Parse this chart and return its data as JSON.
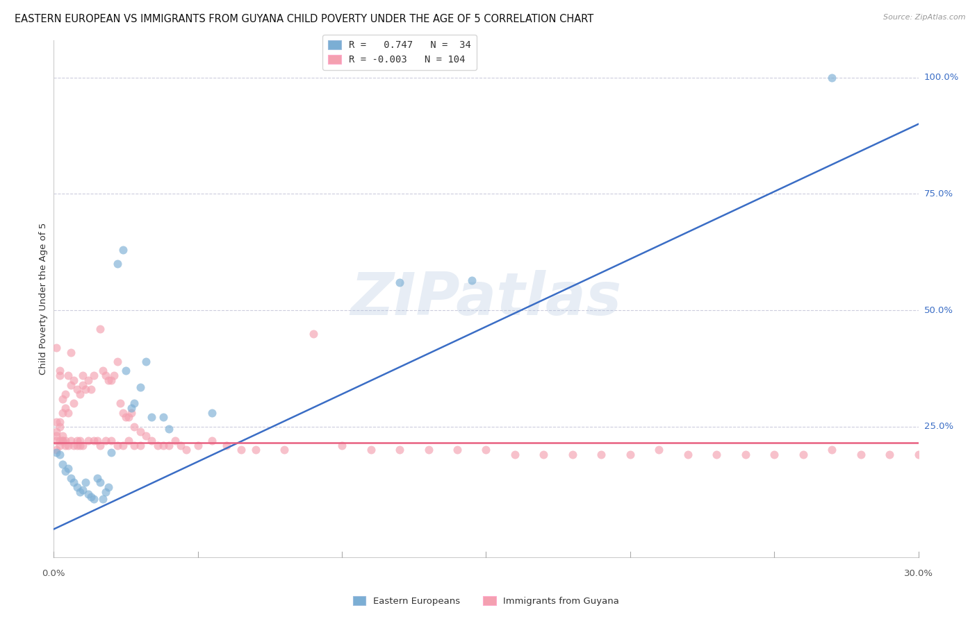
{
  "title": "EASTERN EUROPEAN VS IMMIGRANTS FROM GUYANA CHILD POVERTY UNDER THE AGE OF 5 CORRELATION CHART",
  "source": "Source: ZipAtlas.com",
  "ylabel": "Child Poverty Under the Age of 5",
  "ytick_labels": [
    "100.0%",
    "75.0%",
    "50.0%",
    "25.0%"
  ],
  "ytick_values": [
    1.0,
    0.75,
    0.5,
    0.25
  ],
  "xtick_label_left": "0.0%",
  "xtick_label_right": "30.0%",
  "xmin": 0.0,
  "xmax": 0.3,
  "ymin": -0.03,
  "ymax": 1.08,
  "r1": "0.747",
  "n1": "34",
  "r2": "-0.003",
  "n2": "104",
  "legend_label1": "Eastern Europeans",
  "legend_label2": "Immigrants from Guyana",
  "watermark": "ZIPatlas",
  "blue_color": "#7BAED4",
  "pink_color": "#F4A0B0",
  "blue_line_color": "#3A6DC5",
  "pink_line_color": "#E86080",
  "grid_color": "#CCCCDD",
  "blue_scatter_x": [
    0.001,
    0.002,
    0.003,
    0.004,
    0.005,
    0.006,
    0.007,
    0.008,
    0.009,
    0.01,
    0.011,
    0.012,
    0.013,
    0.014,
    0.015,
    0.016,
    0.017,
    0.018,
    0.019,
    0.02,
    0.022,
    0.024,
    0.025,
    0.027,
    0.028,
    0.03,
    0.032,
    0.034,
    0.038,
    0.04,
    0.055,
    0.12,
    0.145,
    0.27
  ],
  "blue_scatter_y": [
    0.195,
    0.19,
    0.17,
    0.155,
    0.16,
    0.14,
    0.13,
    0.12,
    0.11,
    0.115,
    0.13,
    0.105,
    0.1,
    0.095,
    0.14,
    0.13,
    0.095,
    0.11,
    0.12,
    0.195,
    0.6,
    0.63,
    0.37,
    0.29,
    0.3,
    0.335,
    0.39,
    0.27,
    0.27,
    0.245,
    0.28,
    0.56,
    0.565,
    1.0
  ],
  "pink_scatter_x": [
    0.001,
    0.001,
    0.001,
    0.001,
    0.002,
    0.002,
    0.002,
    0.002,
    0.003,
    0.003,
    0.003,
    0.004,
    0.004,
    0.004,
    0.005,
    0.005,
    0.006,
    0.006,
    0.007,
    0.007,
    0.008,
    0.008,
    0.009,
    0.009,
    0.01,
    0.01,
    0.011,
    0.012,
    0.013,
    0.014,
    0.015,
    0.016,
    0.017,
    0.018,
    0.019,
    0.02,
    0.021,
    0.022,
    0.023,
    0.024,
    0.025,
    0.026,
    0.027,
    0.028,
    0.03,
    0.032,
    0.034,
    0.036,
    0.038,
    0.04,
    0.042,
    0.044,
    0.046,
    0.05,
    0.055,
    0.06,
    0.065,
    0.07,
    0.08,
    0.09,
    0.1,
    0.11,
    0.12,
    0.13,
    0.14,
    0.15,
    0.16,
    0.17,
    0.18,
    0.19,
    0.2,
    0.21,
    0.22,
    0.23,
    0.24,
    0.25,
    0.26,
    0.27,
    0.28,
    0.29,
    0.3,
    0.001,
    0.001,
    0.002,
    0.002,
    0.003,
    0.003,
    0.004,
    0.005,
    0.006,
    0.007,
    0.008,
    0.009,
    0.01,
    0.012,
    0.014,
    0.016,
    0.018,
    0.02,
    0.022,
    0.024,
    0.026,
    0.028,
    0.03
  ],
  "pink_scatter_y": [
    0.22,
    0.24,
    0.42,
    0.2,
    0.36,
    0.37,
    0.26,
    0.21,
    0.28,
    0.31,
    0.22,
    0.29,
    0.32,
    0.22,
    0.28,
    0.36,
    0.34,
    0.41,
    0.3,
    0.35,
    0.33,
    0.22,
    0.32,
    0.21,
    0.36,
    0.34,
    0.33,
    0.35,
    0.33,
    0.36,
    0.22,
    0.46,
    0.37,
    0.36,
    0.35,
    0.35,
    0.36,
    0.39,
    0.3,
    0.28,
    0.27,
    0.27,
    0.28,
    0.25,
    0.24,
    0.23,
    0.22,
    0.21,
    0.21,
    0.21,
    0.22,
    0.21,
    0.2,
    0.21,
    0.22,
    0.21,
    0.2,
    0.2,
    0.2,
    0.45,
    0.21,
    0.2,
    0.2,
    0.2,
    0.2,
    0.2,
    0.19,
    0.19,
    0.19,
    0.19,
    0.19,
    0.2,
    0.19,
    0.19,
    0.19,
    0.19,
    0.19,
    0.2,
    0.19,
    0.19,
    0.19,
    0.23,
    0.26,
    0.25,
    0.22,
    0.23,
    0.22,
    0.21,
    0.21,
    0.22,
    0.21,
    0.21,
    0.22,
    0.21,
    0.22,
    0.22,
    0.21,
    0.22,
    0.22,
    0.21,
    0.21,
    0.22,
    0.21,
    0.21
  ],
  "blue_line_x0": 0.0,
  "blue_line_y0": 0.03,
  "blue_line_x1": 0.3,
  "blue_line_y1": 0.9,
  "pink_line_y": 0.215,
  "dot_alpha": 0.65,
  "dot_size": 75,
  "title_fontsize": 10.5,
  "axis_fontsize": 9.5,
  "tick_fontsize": 9.5,
  "label_fontsize": 9.5,
  "legend_fontsize": 10.0
}
